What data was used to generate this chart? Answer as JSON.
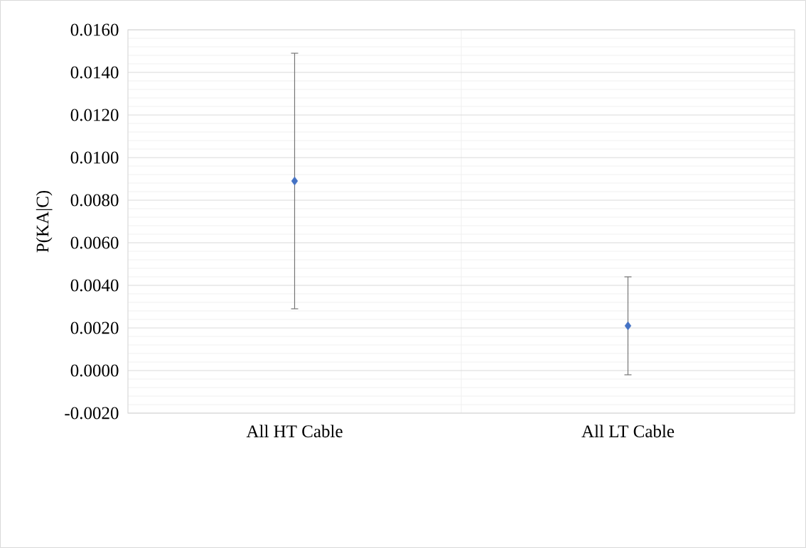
{
  "chart_data": {
    "type": "scatter",
    "ylabel": "P(KA|C)",
    "categories": [
      "All HT Cable",
      "All LT Cable"
    ],
    "series": [
      {
        "color": "#4472c4",
        "values": [
          0.0089,
          0.0021
        ],
        "errors": [
          0.006,
          0.0023
        ]
      }
    ],
    "ylim": [
      -0.002,
      0.016
    ],
    "yticks": [
      {
        "value": -0.002,
        "label": "-0.0020"
      },
      {
        "value": 0,
        "label": "0.0000"
      },
      {
        "value": 0.002,
        "label": "0.0020"
      },
      {
        "value": 0.004,
        "label": "0.0040"
      },
      {
        "value": 0.006,
        "label": "0.0060"
      },
      {
        "value": 0.008,
        "label": "0.0080"
      },
      {
        "value": 0.01,
        "label": "0.0100"
      },
      {
        "value": 0.012,
        "label": "0.0120"
      },
      {
        "value": 0.014,
        "label": "0.0140"
      },
      {
        "value": 0.016,
        "label": "0.0160"
      }
    ],
    "grid": true,
    "marker": "diamond"
  }
}
